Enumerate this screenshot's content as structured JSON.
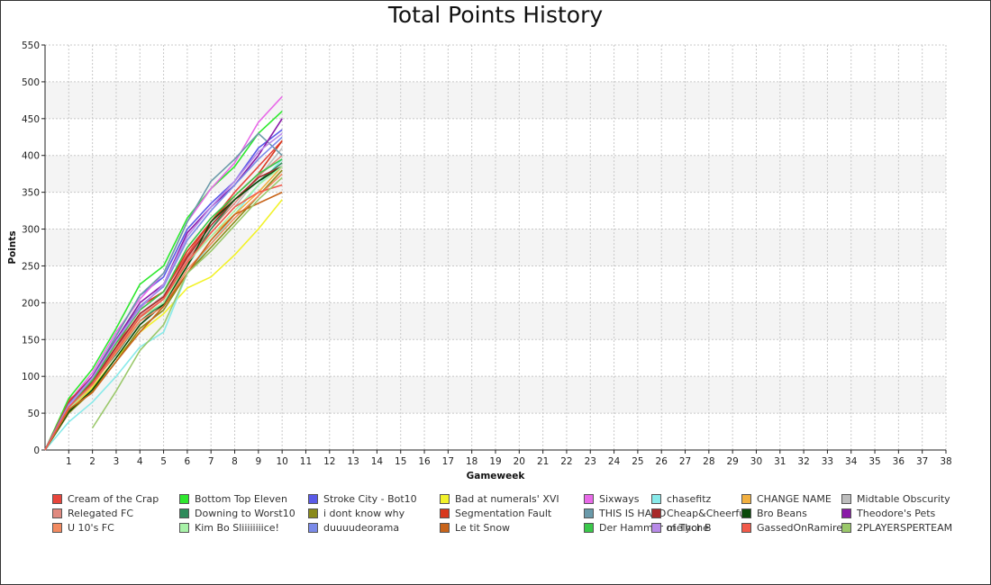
{
  "chart_data": {
    "type": "line",
    "title": "Total Points History",
    "xlabel": "Gameweek",
    "ylabel": "Points",
    "xlim": [
      0,
      38
    ],
    "ylim": [
      0,
      550
    ],
    "x_ticks": [
      1,
      2,
      3,
      4,
      5,
      6,
      7,
      8,
      9,
      10,
      11,
      12,
      13,
      14,
      15,
      16,
      17,
      18,
      19,
      20,
      21,
      22,
      23,
      24,
      25,
      26,
      27,
      28,
      29,
      30,
      31,
      32,
      33,
      34,
      35,
      36,
      37,
      38
    ],
    "y_ticks": [
      0,
      50,
      100,
      150,
      200,
      250,
      300,
      350,
      400,
      450,
      500,
      550
    ],
    "grid": true,
    "legend_position": "bottom",
    "series": [
      {
        "name": "Cream of the Crap",
        "color": "#e8453c",
        "x": [
          0,
          1,
          2,
          3,
          4,
          5,
          6,
          7,
          8,
          9,
          10
        ],
        "y": [
          0,
          68,
          95,
          140,
          195,
          215,
          265,
          310,
          350,
          385,
          420
        ]
      },
      {
        "name": "Bottom Top Eleven",
        "color": "#2ee82e",
        "x": [
          0,
          1,
          2,
          3,
          4,
          5,
          6,
          7,
          8,
          9,
          10
        ],
        "y": [
          0,
          70,
          110,
          165,
          225,
          250,
          315,
          355,
          385,
          430,
          460
        ]
      },
      {
        "name": "Stroke City - Bot10",
        "color": "#5a5ae8",
        "x": [
          0,
          1,
          2,
          3,
          4,
          5,
          6,
          7,
          8,
          9,
          10
        ],
        "y": [
          0,
          60,
          100,
          155,
          210,
          235,
          300,
          335,
          365,
          410,
          435
        ]
      },
      {
        "name": "Bad at numerals' XVI",
        "color": "#f2f22a",
        "x": [
          0,
          1,
          2,
          3,
          4,
          5,
          6,
          7,
          8,
          9,
          10
        ],
        "y": [
          0,
          55,
          85,
          125,
          160,
          185,
          220,
          235,
          265,
          300,
          340
        ]
      },
      {
        "name": "Sixways",
        "color": "#e86ae8",
        "x": [
          0,
          1,
          2,
          3,
          4,
          5,
          6,
          7,
          8,
          9,
          10
        ],
        "y": [
          0,
          65,
          105,
          160,
          205,
          240,
          310,
          355,
          390,
          445,
          480
        ]
      },
      {
        "name": "chasefitz",
        "color": "#88eaea",
        "x": [
          0,
          1,
          2,
          3,
          4,
          5,
          6,
          7,
          8,
          9,
          10
        ],
        "y": [
          0,
          38,
          65,
          100,
          140,
          160,
          240,
          280,
          320,
          360,
          395
        ]
      },
      {
        "name": "CHANGE NAME",
        "color": "#f2b040",
        "x": [
          0,
          1,
          2,
          3,
          4,
          5,
          6,
          7,
          8,
          9,
          10
        ],
        "y": [
          0,
          55,
          90,
          135,
          175,
          200,
          255,
          290,
          320,
          350,
          385
        ]
      },
      {
        "name": "Midtable Obscurity",
        "color": "#bdbdbd",
        "x": [
          0,
          1,
          2,
          3,
          4,
          5,
          6,
          7,
          8,
          9,
          10
        ],
        "y": [
          0,
          60,
          95,
          140,
          185,
          210,
          260,
          295,
          330,
          370,
          410
        ]
      },
      {
        "name": "Relegated FC",
        "color": "#e08a80",
        "x": [
          0,
          1,
          2,
          3,
          4,
          5,
          6,
          7,
          8,
          9,
          10
        ],
        "y": [
          0,
          62,
          92,
          138,
          182,
          205,
          258,
          300,
          335,
          372,
          400
        ]
      },
      {
        "name": "Downing to Worst10",
        "color": "#2e8a5a",
        "x": [
          0,
          1,
          2,
          3,
          4,
          5,
          6,
          7,
          8,
          9,
          10
        ],
        "y": [
          0,
          58,
          90,
          130,
          175,
          200,
          250,
          300,
          340,
          365,
          390
        ]
      },
      {
        "name": "i dont know why",
        "color": "#8a8a1a",
        "x": [
          0,
          1,
          2,
          3,
          4,
          5,
          6,
          7,
          8,
          9,
          10
        ],
        "y": [
          0,
          50,
          80,
          120,
          165,
          190,
          240,
          275,
          310,
          345,
          380
        ]
      },
      {
        "name": "Segmentation Fault",
        "color": "#d8381e",
        "x": [
          0,
          1,
          2,
          3,
          4,
          5,
          6,
          7,
          8,
          9,
          10
        ],
        "y": [
          0,
          65,
          100,
          150,
          195,
          215,
          270,
          310,
          345,
          375,
          420
        ]
      },
      {
        "name": "THIS IS HARD",
        "color": "#6a9aaa",
        "x": [
          0,
          1,
          2,
          3,
          4,
          5,
          6,
          7,
          8,
          9,
          10
        ],
        "y": [
          0,
          60,
          100,
          155,
          210,
          240,
          310,
          365,
          395,
          430,
          400
        ]
      },
      {
        "name": "Cheap&Cheerful",
        "color": "#a82828",
        "x": [
          0,
          1,
          2,
          3,
          4,
          5,
          6,
          7,
          8,
          9,
          10
        ],
        "y": [
          0,
          60,
          92,
          140,
          185,
          208,
          262,
          305,
          340,
          370,
          385
        ]
      },
      {
        "name": "Bro Beans",
        "color": "#0a4a0a",
        "x": [
          0,
          1,
          2,
          3,
          4,
          5,
          6,
          7,
          8,
          9,
          10
        ],
        "y": [
          0,
          52,
          82,
          125,
          170,
          198,
          250,
          310,
          340,
          365,
          385
        ]
      },
      {
        "name": "Theodore's Pets",
        "color": "#8a1aa8",
        "x": [
          0,
          1,
          2,
          3,
          4,
          5,
          6,
          7,
          8,
          9,
          10
        ],
        "y": [
          0,
          62,
          100,
          150,
          200,
          225,
          295,
          330,
          360,
          400,
          450
        ]
      },
      {
        "name": "U 10's FC",
        "color": "#f28a60",
        "x": [
          0,
          1,
          2,
          3,
          4,
          5,
          6,
          7,
          8,
          9,
          10
        ],
        "y": [
          0,
          55,
          88,
          132,
          175,
          195,
          245,
          280,
          315,
          345,
          375
        ]
      },
      {
        "name": "Kim Bo Sliiiiiiiice!",
        "color": "#a8f2a8",
        "x": [
          0,
          1,
          2,
          3,
          4,
          5,
          6,
          7,
          8,
          9,
          10
        ],
        "y": [
          0,
          55,
          90,
          135,
          180,
          200,
          255,
          290,
          325,
          360,
          385
        ]
      },
      {
        "name": "duuuudeorama",
        "color": "#7a8ae8",
        "x": [
          0,
          1,
          2,
          3,
          4,
          5,
          6,
          7,
          8,
          9,
          10
        ],
        "y": [
          0,
          62,
          98,
          148,
          195,
          222,
          285,
          325,
          360,
          395,
          425
        ]
      },
      {
        "name": "Le tit Snow",
        "color": "#c8641a",
        "x": [
          0,
          1,
          2,
          3,
          4,
          5,
          6,
          7,
          8,
          9,
          10
        ],
        "y": [
          0,
          55,
          78,
          120,
          160,
          195,
          240,
          285,
          320,
          335,
          350
        ]
      },
      {
        "name": "Der Hammer of Thor B",
        "color": "#3ac84a",
        "x": [
          0,
          1,
          2,
          3,
          4,
          5,
          6,
          7,
          8,
          9,
          10
        ],
        "y": [
          0,
          60,
          95,
          145,
          190,
          215,
          275,
          315,
          345,
          375,
          395
        ]
      },
      {
        "name": "melyche",
        "color": "#b88ae8",
        "x": [
          0,
          1,
          2,
          3,
          4,
          5,
          6,
          7,
          8,
          9,
          10
        ],
        "y": [
          0,
          60,
          98,
          148,
          192,
          225,
          290,
          330,
          365,
          405,
          430
        ]
      },
      {
        "name": "GassedOnRamirez",
        "color": "#f25a4a",
        "x": [
          0,
          1,
          2,
          3,
          4,
          5,
          6,
          7,
          8,
          9,
          10
        ],
        "y": [
          0,
          58,
          90,
          135,
          180,
          205,
          255,
          295,
          330,
          350,
          360
        ]
      },
      {
        "name": "2PLAYERSPERTEAM",
        "color": "#9ac86a",
        "x": [
          2,
          3,
          4,
          5,
          6,
          7,
          8,
          9,
          10
        ],
        "y": [
          30,
          80,
          135,
          170,
          240,
          270,
          305,
          340,
          370
        ]
      }
    ]
  }
}
